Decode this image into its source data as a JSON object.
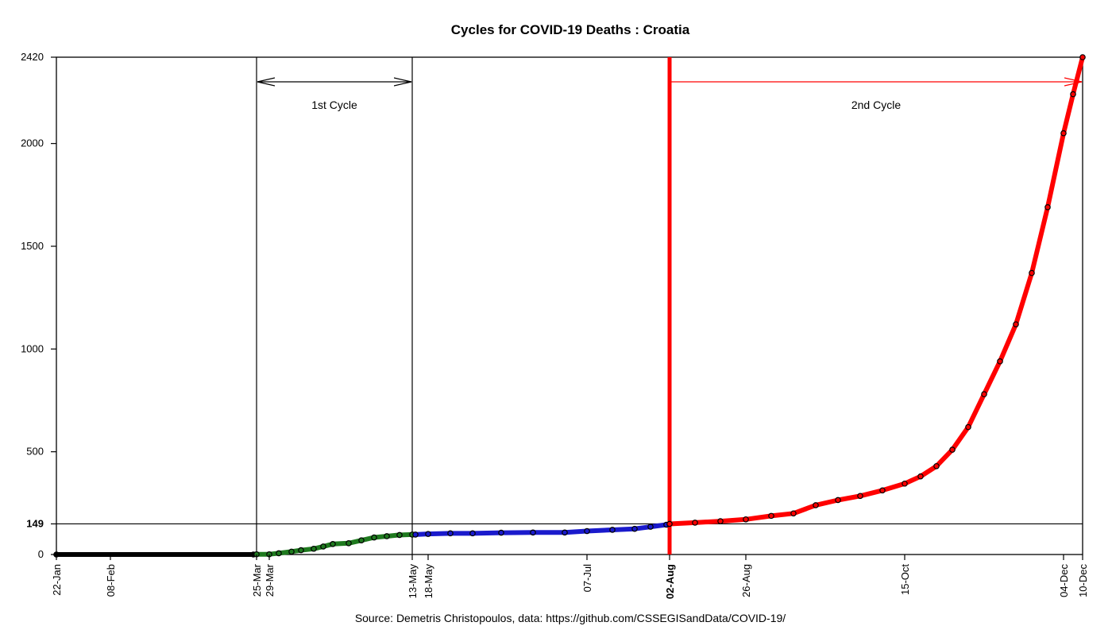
{
  "chart_data": {
    "type": "line",
    "title": "Cycles for COVID-19 Deaths : Croatia",
    "source": "Source: Demetris Christopoulos, data: https://github.com/CSSEGISandData/COVID-19/",
    "x_axis": {
      "start_date": "2020-01-22",
      "end_date": "2020-12-10",
      "tick_labels": [
        {
          "date": "2020-01-22",
          "label": "22-Jan",
          "bold": false
        },
        {
          "date": "2020-02-08",
          "label": "08-Feb",
          "bold": false
        },
        {
          "date": "2020-03-25",
          "label": "25-Mar",
          "bold": false
        },
        {
          "date": "2020-03-29",
          "label": "29-Mar",
          "bold": false
        },
        {
          "date": "2020-05-13",
          "label": "13-May",
          "bold": false
        },
        {
          "date": "2020-05-18",
          "label": "18-May",
          "bold": false
        },
        {
          "date": "2020-07-07",
          "label": "07-Jul",
          "bold": false
        },
        {
          "date": "2020-08-02",
          "label": "02-Aug",
          "bold": true
        },
        {
          "date": "2020-08-26",
          "label": "26-Aug",
          "bold": false
        },
        {
          "date": "2020-10-15",
          "label": "15-Oct",
          "bold": false
        },
        {
          "date": "2020-12-04",
          "label": "04-Dec",
          "bold": false
        },
        {
          "date": "2020-12-10",
          "label": "10-Dec",
          "bold": false
        }
      ]
    },
    "y_axis": {
      "range": [
        0,
        2420
      ],
      "tick_values": [
        0,
        149,
        500,
        1000,
        1500,
        2000,
        2420
      ],
      "tick_labels": [
        "0",
        "149",
        "500",
        "1000",
        "1500",
        "2000",
        "2420"
      ],
      "bold_ticks": [
        "149"
      ]
    },
    "reference_lines": {
      "horizontal": [
        {
          "y": 149,
          "color": "#000000"
        }
      ],
      "vertical": [
        {
          "date": "2020-03-25",
          "color": "#000000",
          "thick": false
        },
        {
          "date": "2020-05-13",
          "color": "#000000",
          "thick": false
        },
        {
          "date": "2020-08-02",
          "color": "#ff0000",
          "thick": true
        }
      ]
    },
    "cycles": [
      {
        "label": "1st Cycle",
        "start": "2020-03-25",
        "end": "2020-05-13",
        "color": "#000000"
      },
      {
        "label": "2nd Cycle",
        "start": "2020-08-02",
        "end": "2020-12-10",
        "color": "#ff0000"
      }
    ],
    "series": [
      {
        "color": "#000000",
        "points": [
          [
            "2020-01-22",
            0
          ],
          [
            "2020-03-24",
            0
          ]
        ]
      },
      {
        "color": "#1f7a1f",
        "points": [
          [
            "2020-03-25",
            1
          ],
          [
            "2020-03-29",
            1
          ],
          [
            "2020-04-01",
            6
          ],
          [
            "2020-04-05",
            14
          ],
          [
            "2020-04-08",
            21
          ],
          [
            "2020-04-12",
            28
          ],
          [
            "2020-04-15",
            39
          ],
          [
            "2020-04-18",
            51
          ],
          [
            "2020-04-23",
            55
          ],
          [
            "2020-04-27",
            69
          ],
          [
            "2020-05-01",
            83
          ],
          [
            "2020-05-05",
            89
          ],
          [
            "2020-05-09",
            95
          ],
          [
            "2020-05-13",
            97
          ]
        ]
      },
      {
        "color": "#1a1acc",
        "points": [
          [
            "2020-05-14",
            97
          ],
          [
            "2020-05-18",
            100
          ],
          [
            "2020-05-25",
            103
          ],
          [
            "2020-06-01",
            103
          ],
          [
            "2020-06-10",
            106
          ],
          [
            "2020-06-20",
            107
          ],
          [
            "2020-06-30",
            107
          ],
          [
            "2020-07-07",
            114
          ],
          [
            "2020-07-15",
            120
          ],
          [
            "2020-07-22",
            125
          ],
          [
            "2020-07-27",
            135
          ],
          [
            "2020-08-01",
            145
          ]
        ]
      },
      {
        "color": "#ff0000",
        "points": [
          [
            "2020-08-02",
            149
          ],
          [
            "2020-08-10",
            155
          ],
          [
            "2020-08-18",
            162
          ],
          [
            "2020-08-26",
            171
          ],
          [
            "2020-09-03",
            188
          ],
          [
            "2020-09-10",
            200
          ],
          [
            "2020-09-17",
            240
          ],
          [
            "2020-09-24",
            265
          ],
          [
            "2020-10-01",
            285
          ],
          [
            "2020-10-08",
            312
          ],
          [
            "2020-10-15",
            345
          ],
          [
            "2020-10-20",
            380
          ],
          [
            "2020-10-25",
            430
          ],
          [
            "2020-10-30",
            510
          ],
          [
            "2020-11-04",
            620
          ],
          [
            "2020-11-09",
            780
          ],
          [
            "2020-11-14",
            940
          ],
          [
            "2020-11-19",
            1120
          ],
          [
            "2020-11-24",
            1370
          ],
          [
            "2020-11-29",
            1690
          ],
          [
            "2020-12-04",
            2050
          ],
          [
            "2020-12-07",
            2240
          ],
          [
            "2020-12-10",
            2420
          ]
        ]
      }
    ]
  }
}
